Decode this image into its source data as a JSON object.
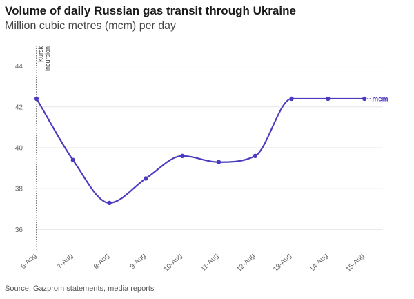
{
  "header": {
    "title": "Volume of daily Russian gas transit through Ukraine",
    "subtitle": "Million cubic metres (mcm) per day"
  },
  "footer": {
    "source": "Source: Gazprom statements, media reports"
  },
  "colors": {
    "series": "#4b3bbf",
    "grid": "#e6e6e6",
    "annotation_line": "#333333"
  },
  "chart_data": {
    "type": "line",
    "title": "Volume of daily Russian gas transit through Ukraine",
    "subtitle": "Million cubic metres (mcm) per day",
    "xlabel": "",
    "ylabel": "",
    "categories": [
      "6-Aug",
      "7-Aug",
      "8-Aug",
      "9-Aug",
      "10-Aug",
      "11-Aug",
      "12-Aug",
      "13-Aug",
      "14-Aug",
      "15-Aug"
    ],
    "series": [
      {
        "name": "mcm",
        "values": [
          42.4,
          39.4,
          37.3,
          38.5,
          39.6,
          39.3,
          39.6,
          42.4,
          42.4,
          42.4
        ]
      }
    ],
    "ylim": [
      35,
      45
    ],
    "yticks": [
      36,
      38,
      40,
      42,
      44
    ],
    "grid": true,
    "annotations": [
      {
        "x": "6-Aug",
        "lines": [
          "Kursk",
          "incursion"
        ]
      }
    ]
  }
}
